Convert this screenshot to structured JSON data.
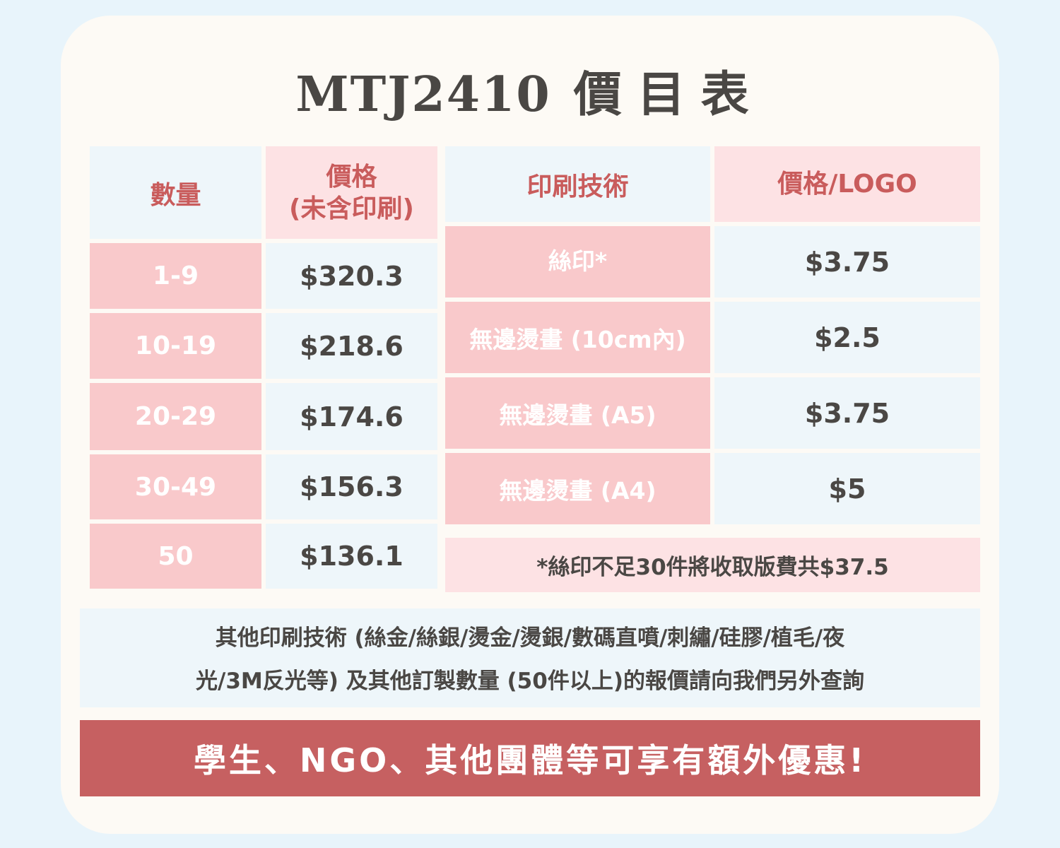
{
  "title": {
    "code": "MTJ2410",
    "label": "價目表"
  },
  "qty_table": {
    "headers": {
      "qty": "數量",
      "price_line1": "價格",
      "price_line2": "(未含印刷)"
    },
    "rows": [
      {
        "qty": "1-9",
        "price": "$320.3"
      },
      {
        "qty": "10-19",
        "price": "$218.6"
      },
      {
        "qty": "20-29",
        "price": "$174.6"
      },
      {
        "qty": "30-49",
        "price": "$156.3"
      },
      {
        "qty": "50",
        "price": "$136.1"
      }
    ]
  },
  "tech_table": {
    "headers": {
      "tech": "印刷技術",
      "price": "價格/LOGO"
    },
    "rows": [
      {
        "tech": "絲印*",
        "price": "$3.75"
      },
      {
        "tech": "無邊燙畫 (10cm內)",
        "price": "$2.5"
      },
      {
        "tech": "無邊燙畫 (A5)",
        "price": "$3.75"
      },
      {
        "tech": "無邊燙畫 (A4)",
        "price": "$5"
      }
    ],
    "note": "*絲印不足30件將收取版費共$37.5"
  },
  "info": {
    "line1": "其他印刷技術 (絲金/絲銀/燙金/燙銀/數碼直噴/刺繡/硅膠/植毛/夜",
    "line2": "光/3M反光等) 及其他訂製數量 (50件以上)的報價請向我們另外查詢"
  },
  "banner": "學生、NGO、其他團體等可享有額外優惠!",
  "colors": {
    "page_bg": "#e8f4fb",
    "card_bg": "#fdfaf5",
    "pink": "#f9c9cb",
    "light_pink": "#fde2e4",
    "light_blue": "#eef6fa",
    "red": "#c66061",
    "text": "#4a4744"
  }
}
